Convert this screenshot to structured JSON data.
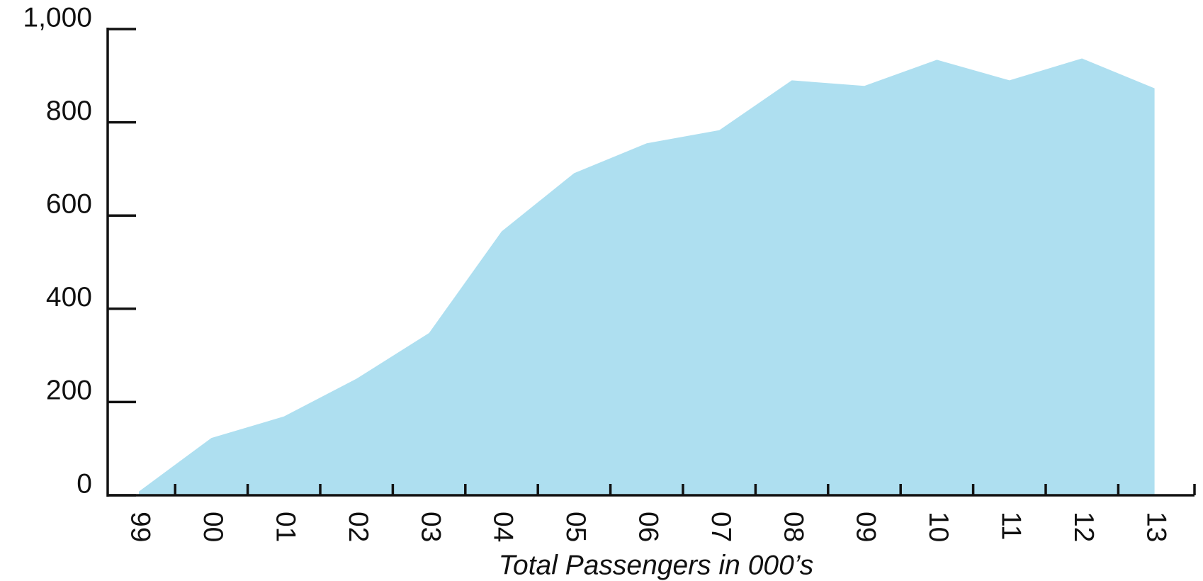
{
  "chart_data": {
    "type": "area",
    "x_label": "Total Passengers in 000’s",
    "categories": [
      "99",
      "00",
      "01",
      "02",
      "03",
      "04",
      "05",
      "06",
      "07",
      "08",
      "09",
      "10",
      "11",
      "12",
      "13"
    ],
    "values": [
      8,
      123,
      169,
      250,
      348,
      566,
      691,
      755,
      783,
      890,
      878,
      934,
      890,
      937,
      873
    ],
    "color": "#aedff0",
    "ylim": [
      0,
      1000
    ],
    "yticks": [
      0,
      200,
      400,
      600,
      800,
      {
        "value": 1000,
        "label": "1,000"
      }
    ]
  }
}
